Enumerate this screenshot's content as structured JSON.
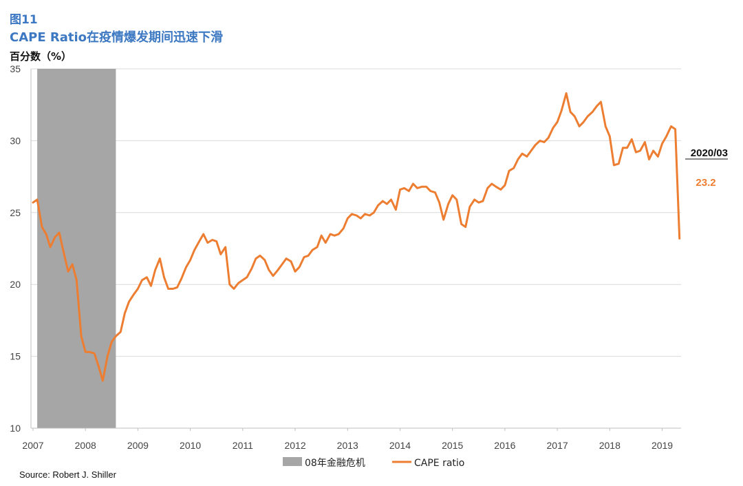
{
  "header": {
    "figure_number": "图11",
    "title": "CAPE Ratio在疫情爆发期间迅速下滑",
    "unit": "百分数（%）"
  },
  "source": "Source: Robert J. Shiller",
  "colors": {
    "line": "#ED7D31",
    "shade": "#A6A6A6",
    "title": "#3D78C2",
    "grid": "#D9D9D9"
  },
  "chart_data": {
    "type": "line",
    "title": "CAPE Ratio在疫情爆发期间迅速下滑",
    "ylabel": "百分数（%）",
    "ylim": [
      10,
      35
    ],
    "yticks": [
      "10",
      "15",
      "20",
      "25",
      "30",
      "35"
    ],
    "xticks": [
      "2007",
      "2008",
      "2009",
      "2010",
      "2011",
      "2012",
      "2013",
      "2014",
      "2015",
      "2016",
      "2017",
      "2018",
      "2019"
    ],
    "grid": true,
    "legend_position": "bottom",
    "shaded_region": {
      "label": "08年金融危机",
      "start": 2007.08,
      "end": 2008.58
    },
    "series": [
      {
        "name": "CAPE ratio",
        "x": [
          2007.0,
          2007.08,
          2007.17,
          2007.25,
          2007.33,
          2007.42,
          2007.5,
          2007.58,
          2007.67,
          2007.75,
          2007.83,
          2007.92,
          2008.0,
          2008.08,
          2008.17,
          2008.25,
          2008.33,
          2008.42,
          2008.5,
          2008.58,
          2008.67,
          2008.75,
          2008.83,
          2008.92,
          2009.0,
          2009.08,
          2009.17,
          2009.25,
          2009.33,
          2009.42,
          2009.5,
          2009.58,
          2009.67,
          2009.75,
          2009.83,
          2009.92,
          2010.0,
          2010.08,
          2010.17,
          2010.25,
          2010.33,
          2010.42,
          2010.5,
          2010.58,
          2010.67,
          2010.75,
          2010.83,
          2010.92,
          2011.0,
          2011.08,
          2011.17,
          2011.25,
          2011.33,
          2011.42,
          2011.5,
          2011.58,
          2011.67,
          2011.75,
          2011.83,
          2011.92,
          2012.0,
          2012.08,
          2012.17,
          2012.25,
          2012.33,
          2012.42,
          2012.5,
          2012.58,
          2012.67,
          2012.75,
          2012.83,
          2012.92,
          2013.0,
          2013.08,
          2013.17,
          2013.25,
          2013.33,
          2013.42,
          2013.5,
          2013.58,
          2013.67,
          2013.75,
          2013.83,
          2013.92,
          2014.0,
          2014.08,
          2014.17,
          2014.25,
          2014.33,
          2014.42,
          2014.5,
          2014.58,
          2014.67,
          2014.75,
          2014.83,
          2014.92,
          2015.0,
          2015.08,
          2015.17,
          2015.25,
          2015.33,
          2015.42,
          2015.5,
          2015.58,
          2015.67,
          2015.75,
          2015.83,
          2015.92,
          2016.0,
          2016.08,
          2016.17,
          2016.25,
          2016.33,
          2016.42,
          2016.5,
          2016.58,
          2016.67,
          2016.75,
          2016.83,
          2016.92,
          2017.0,
          2017.08,
          2017.17,
          2017.25,
          2017.33,
          2017.42,
          2017.5,
          2017.58,
          2017.67,
          2017.75,
          2017.83,
          2017.92,
          2018.0,
          2018.08,
          2018.17,
          2018.25,
          2018.33,
          2018.42,
          2018.5,
          2018.58,
          2018.67,
          2018.75,
          2018.83,
          2018.92,
          2019.0,
          2019.08,
          2019.17,
          2019.25,
          2019.33
        ],
        "values": [
          25.7,
          25.9,
          24.0,
          23.5,
          22.6,
          23.3,
          23.6,
          22.3,
          20.9,
          21.4,
          20.3,
          16.4,
          15.3,
          15.3,
          15.2,
          14.3,
          13.3,
          15.0,
          16.0,
          16.4,
          16.7,
          18.0,
          18.8,
          19.3,
          19.7,
          20.3,
          20.5,
          19.9,
          21.0,
          21.8,
          20.5,
          19.7,
          19.7,
          19.8,
          20.4,
          21.2,
          21.7,
          22.4,
          23.0,
          23.5,
          22.9,
          23.1,
          23.0,
          22.1,
          22.6,
          20.0,
          19.7,
          20.1,
          20.3,
          20.5,
          21.1,
          21.8,
          22.0,
          21.7,
          21.0,
          20.6,
          21.0,
          21.4,
          21.8,
          21.6,
          20.9,
          21.2,
          21.9,
          22.0,
          22.4,
          22.6,
          23.4,
          22.9,
          23.5,
          23.4,
          23.5,
          23.9,
          24.6,
          24.9,
          24.8,
          24.6,
          24.9,
          24.8,
          25.0,
          25.5,
          25.8,
          25.6,
          25.9,
          25.2,
          26.6,
          26.7,
          26.5,
          27.0,
          26.7,
          26.8,
          26.8,
          26.5,
          26.4,
          25.7,
          24.5,
          25.6,
          26.2,
          25.9,
          24.2,
          24.0,
          25.4,
          25.9,
          25.7,
          25.8,
          26.7,
          27.0,
          26.8,
          26.6,
          26.9,
          27.9,
          28.1,
          28.7,
          29.1,
          28.9,
          29.3,
          29.7,
          30.0,
          29.9,
          30.2,
          30.9,
          31.3,
          32.1,
          33.3,
          32.0,
          31.7,
          31.0,
          31.3,
          31.7,
          32.0,
          32.4,
          32.7,
          31.0,
          30.3,
          28.3,
          28.4,
          29.5,
          29.5,
          30.1,
          29.2,
          29.3,
          29.9,
          28.7,
          29.3,
          28.9,
          29.8,
          30.3,
          31.0,
          30.8,
          23.2
        ]
      }
    ],
    "annotations": [
      {
        "label": "2020/03",
        "value": "23.2"
      }
    ],
    "legend": [
      {
        "label": "08年金融危机",
        "kind": "area"
      },
      {
        "label": "CAPE ratio",
        "kind": "line"
      }
    ]
  }
}
